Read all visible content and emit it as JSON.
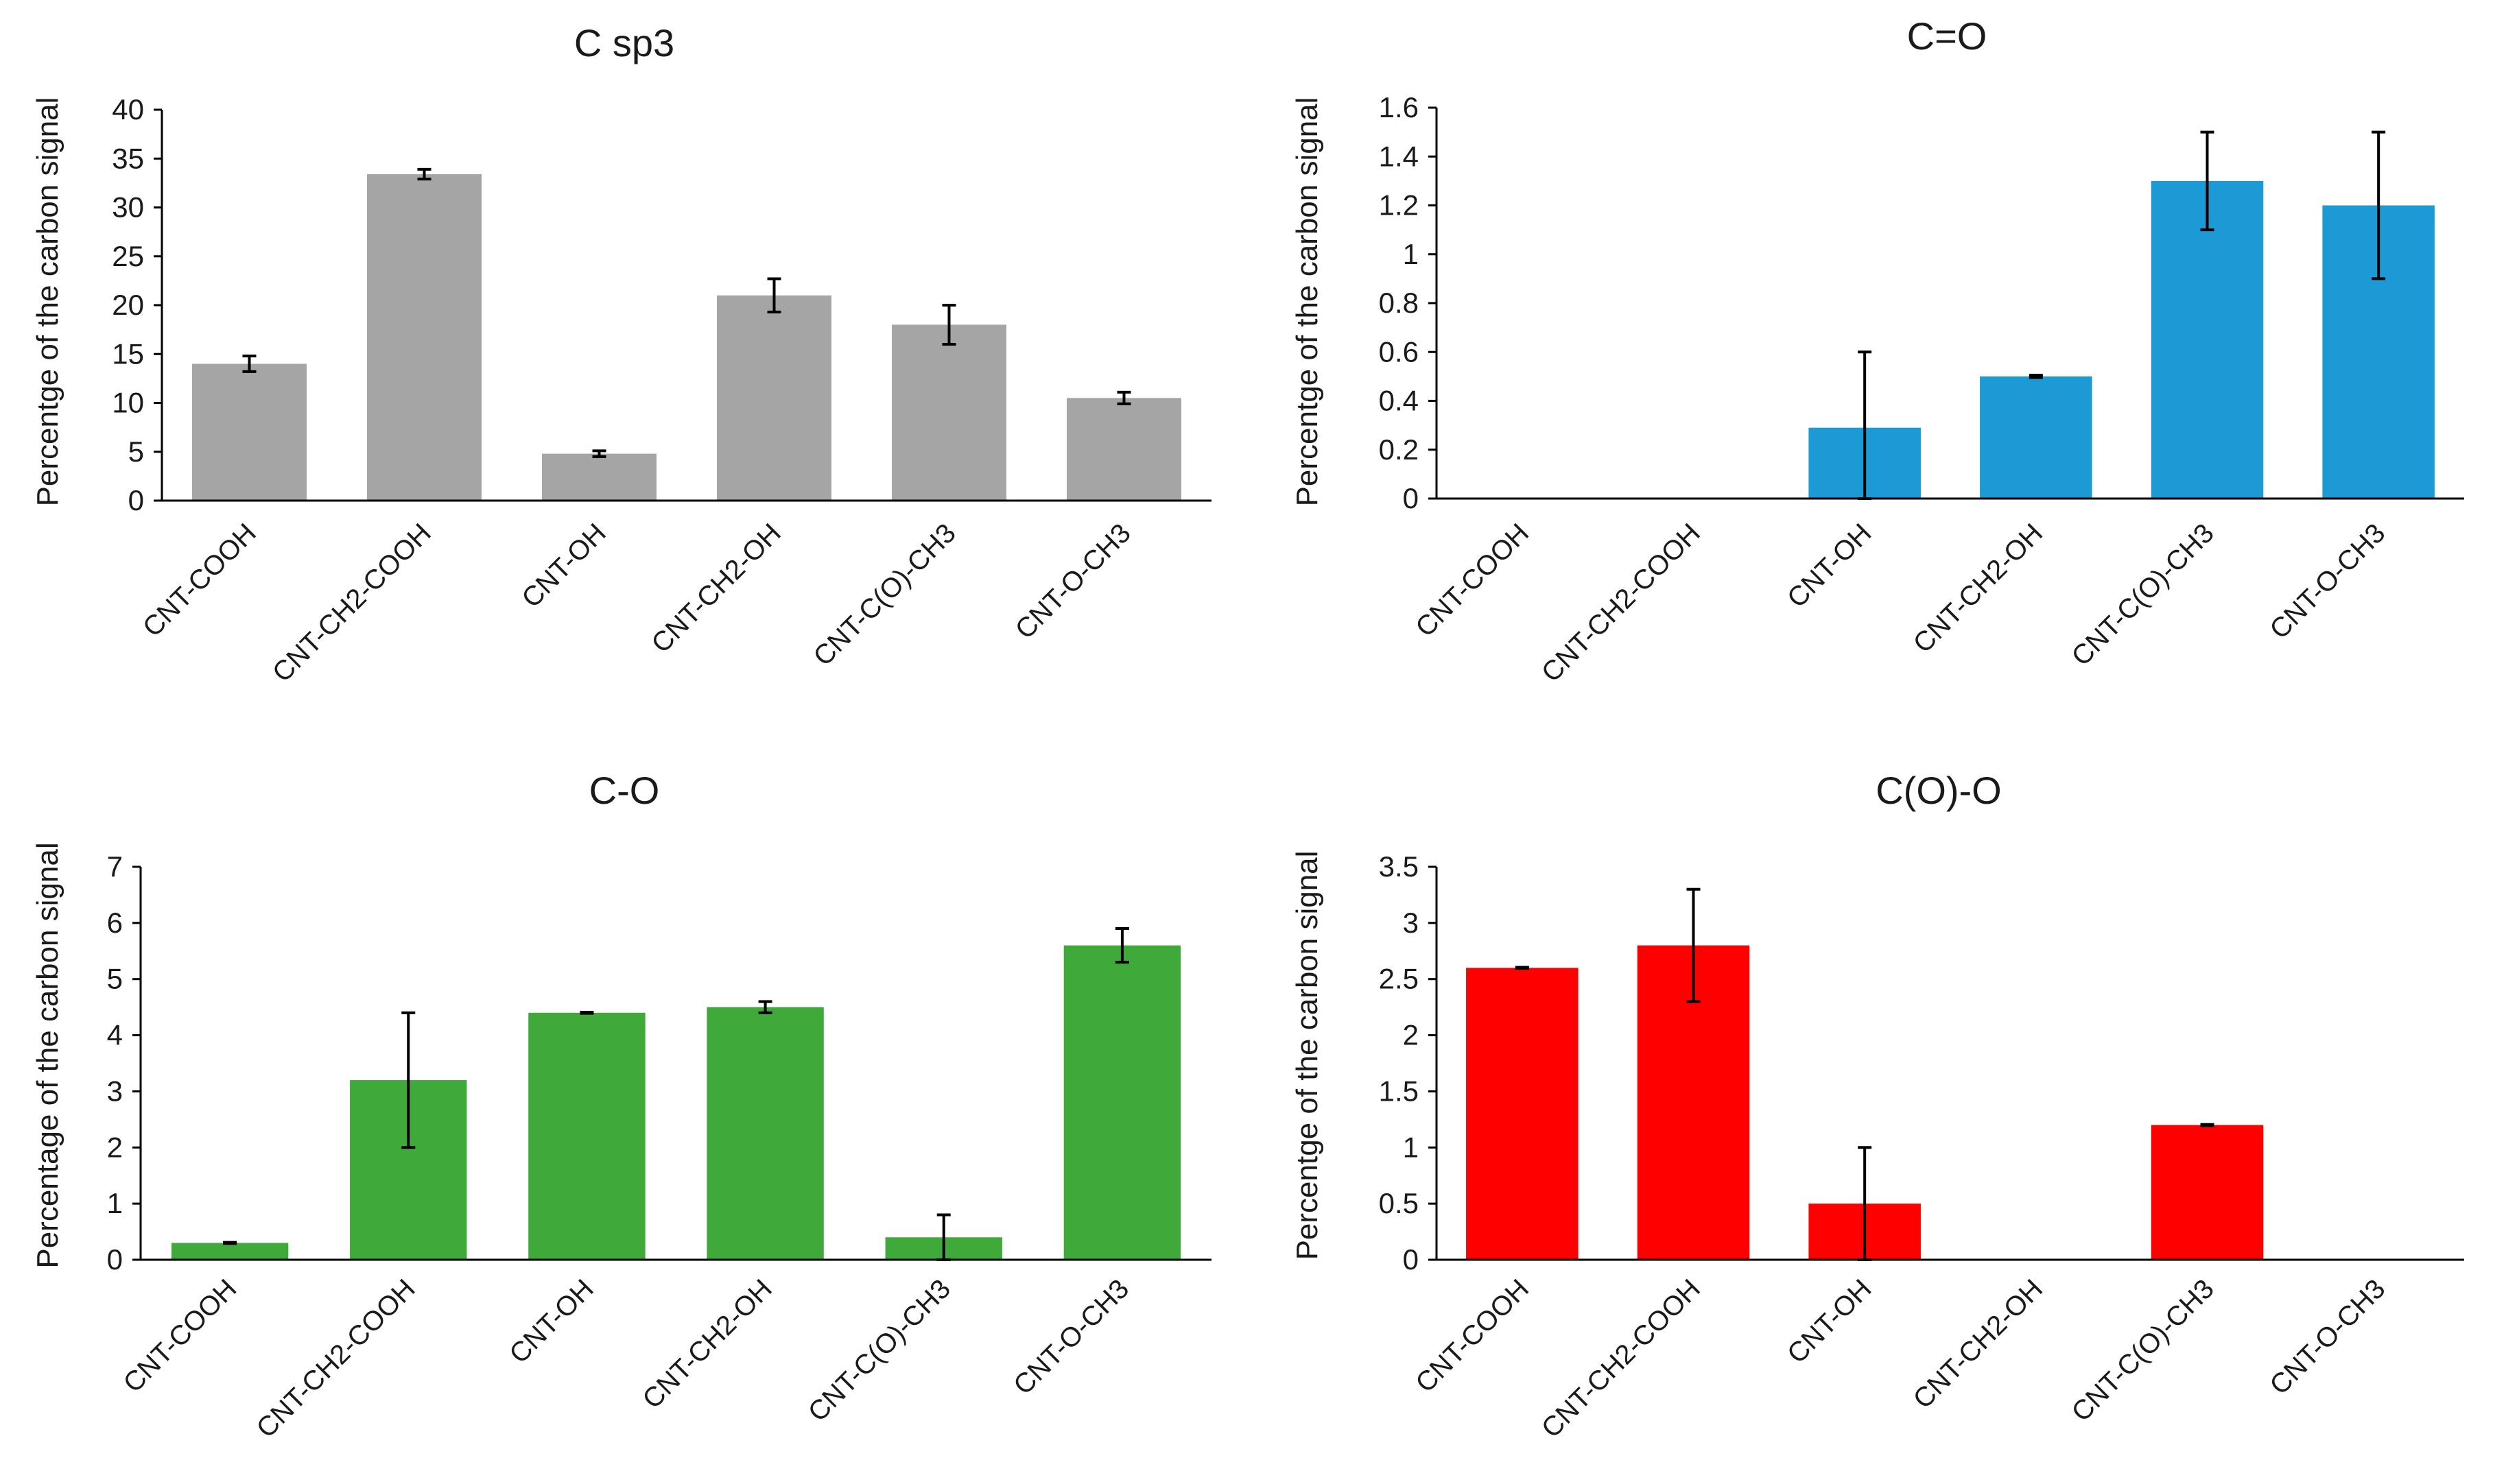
{
  "chart_data": [
    {
      "type": "bar",
      "title": "C sp3",
      "ylabel": "Percentge of the carbon signal",
      "xlabel": "",
      "categories": [
        "CNT-COOH",
        "CNT-CH2-COOH",
        "CNT-OH",
        "CNT-CH2-OH",
        "CNT-C(O)-CH3",
        "CNT-O-CH3"
      ],
      "values": [
        14,
        33.4,
        4.8,
        21,
        18,
        10.5
      ],
      "errors": [
        0.8,
        0.5,
        0.3,
        1.7,
        2.0,
        0.6
      ],
      "ylim": [
        0,
        40
      ],
      "yticks": [
        "0",
        "5",
        "10",
        "15",
        "20",
        "25",
        "30",
        "35",
        "40"
      ],
      "color": "#a5a5a5",
      "grid": false
    },
    {
      "type": "bar",
      "title": "C=O",
      "ylabel": "Percentge of the carbon signal",
      "xlabel": "",
      "categories": [
        "CNT-COOH",
        "CNT-CH2-COOH",
        "CNT-OH",
        "CNT-CH2-OH",
        "CNT-C(O)-CH3",
        "CNT-O-CH3"
      ],
      "values": [
        0,
        0,
        0.29,
        0.5,
        1.3,
        1.2
      ],
      "errors": [
        0,
        0,
        0.31,
        0.005,
        0.2,
        0.3
      ],
      "ylim": [
        0,
        1.6
      ],
      "yticks": [
        "0",
        "0.2",
        "0.4",
        "0.6",
        "0.8",
        "1",
        "1.2",
        "1.4",
        "1.6"
      ],
      "color": "#1b9ad6",
      "grid": false
    },
    {
      "type": "bar",
      "title": "C-O",
      "ylabel": "Percentage of the carbon signal",
      "xlabel": "",
      "categories": [
        "CNT-COOH",
        "CNT-CH2-COOH",
        "CNT-OH",
        "CNT-CH2-OH",
        "CNT-C(O)-CH3",
        "CNT-O-CH3"
      ],
      "values": [
        0.3,
        3.2,
        4.4,
        4.5,
        0.4,
        5.6
      ],
      "errors": [
        0.01,
        1.2,
        0.01,
        0.1,
        0.4,
        0.3
      ],
      "ylim": [
        0,
        7
      ],
      "yticks": [
        "0",
        "1",
        "2",
        "3",
        "4",
        "5",
        "6",
        "7"
      ],
      "color": "#3faa3a",
      "grid": false
    },
    {
      "type": "bar",
      "title": "C(O)-O",
      "ylabel": "Percentge of the carbon signal",
      "xlabel": "",
      "categories": [
        "CNT-COOH",
        "CNT-CH2-COOH",
        "CNT-OH",
        "CNT-CH2-OH",
        "CNT-C(O)-CH3",
        "CNT-O-CH3"
      ],
      "values": [
        2.6,
        2.8,
        0.5,
        0,
        1.2,
        0
      ],
      "errors": [
        0.005,
        0.5,
        0.5,
        0,
        0.005,
        0
      ],
      "ylim": [
        0,
        3.5
      ],
      "yticks": [
        "0",
        "0.5",
        "1",
        "1.5",
        "2",
        "2.5",
        "3",
        "3.5"
      ],
      "color": "#ff0000",
      "grid": false
    }
  ]
}
